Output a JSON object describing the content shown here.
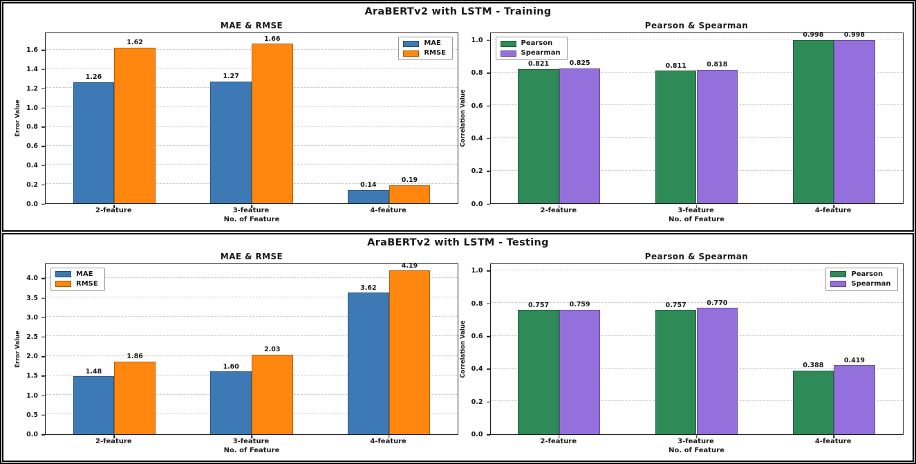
{
  "sections": [
    {
      "title": "AraBERTv2 with LSTM - Training"
    },
    {
      "title": "AraBERTv2 with LSTM - Testing"
    }
  ],
  "colors": {
    "mae": "#3d7ab5",
    "rmse": "#ff870f",
    "pearson": "#2e8b57",
    "spearman": "#9370db",
    "grid": "#c9c9c9",
    "axis": "#1a1a1a"
  },
  "chart_data": [
    {
      "type": "bar",
      "section": "Training",
      "title": "MAE & RMSE",
      "categories": [
        "2-feature",
        "3-feature",
        "4-feature"
      ],
      "series": [
        {
          "name": "MAE",
          "color": "mae",
          "values": [
            1.26,
            1.27,
            0.14
          ],
          "labels": [
            "1.26",
            "1.27",
            "0.14"
          ]
        },
        {
          "name": "RMSE",
          "color": "rmse",
          "values": [
            1.62,
            1.66,
            0.19
          ],
          "labels": [
            "1.62",
            "1.66",
            "0.19"
          ]
        }
      ],
      "xlabel": "No. of Feature",
      "ylabel": "Error Value",
      "ylim": [
        0,
        1.77
      ],
      "yticks": [
        0.0,
        0.2,
        0.4,
        0.6,
        0.8,
        1.0,
        1.2,
        1.4,
        1.6
      ],
      "ytick_labels": [
        "0.0",
        "0.2",
        "0.4",
        "0.6",
        "0.8",
        "1.0",
        "1.2",
        "1.4",
        "1.6"
      ],
      "legend_position": "top-right",
      "grid": "dashed-horizontal"
    },
    {
      "type": "bar",
      "section": "Training",
      "title": "Pearson & Spearman",
      "categories": [
        "2-feature",
        "3-feature",
        "4-feature"
      ],
      "series": [
        {
          "name": "Pearson",
          "color": "pearson",
          "values": [
            0.821,
            0.811,
            0.998
          ],
          "labels": [
            "0.821",
            "0.811",
            "0.998"
          ]
        },
        {
          "name": "Spearman",
          "color": "spearman",
          "values": [
            0.825,
            0.818,
            0.998
          ],
          "labels": [
            "0.825",
            "0.818",
            "0.998"
          ]
        }
      ],
      "xlabel": "No. of Feature",
      "ylabel": "Correlation Value",
      "ylim": [
        0,
        1.04
      ],
      "yticks": [
        0.0,
        0.2,
        0.4,
        0.6,
        0.8,
        1.0
      ],
      "ytick_labels": [
        "0.0",
        "0.2",
        "0.4",
        "0.6",
        "0.8",
        "1.0"
      ],
      "legend_position": "top-left",
      "grid": "dashed-horizontal"
    },
    {
      "type": "bar",
      "section": "Testing",
      "title": "MAE & RMSE",
      "categories": [
        "2-feature",
        "3-feature",
        "4-feature"
      ],
      "series": [
        {
          "name": "MAE",
          "color": "mae",
          "values": [
            1.48,
            1.6,
            3.62
          ],
          "labels": [
            "1.48",
            "1.60",
            "3.62"
          ]
        },
        {
          "name": "RMSE",
          "color": "rmse",
          "values": [
            1.86,
            2.03,
            4.19
          ],
          "labels": [
            "1.86",
            "2.03",
            "4.19"
          ]
        }
      ],
      "xlabel": "No. of Feature",
      "ylabel": "Error Value",
      "ylim": [
        0,
        4.36
      ],
      "yticks": [
        0.0,
        0.5,
        1.0,
        1.5,
        2.0,
        2.5,
        3.0,
        3.5,
        4.0
      ],
      "ytick_labels": [
        "0.0",
        "0.5",
        "1.0",
        "1.5",
        "2.0",
        "2.5",
        "3.0",
        "3.5",
        "4.0"
      ],
      "legend_position": "top-left",
      "grid": "dashed-horizontal"
    },
    {
      "type": "bar",
      "section": "Testing",
      "title": "Pearson & Spearman",
      "categories": [
        "2-feature",
        "3-feature",
        "4-feature"
      ],
      "series": [
        {
          "name": "Pearson",
          "color": "pearson",
          "values": [
            0.757,
            0.757,
            0.388
          ],
          "labels": [
            "0.757",
            "0.757",
            "0.388"
          ]
        },
        {
          "name": "Spearman",
          "color": "spearman",
          "values": [
            0.759,
            0.77,
            0.419
          ],
          "labels": [
            "0.759",
            "0.770",
            "0.419"
          ]
        }
      ],
      "xlabel": "No. of Feature",
      "ylabel": "Correlation Value",
      "ylim": [
        0,
        1.04
      ],
      "yticks": [
        0.0,
        0.2,
        0.4,
        0.6,
        0.8,
        1.0
      ],
      "ytick_labels": [
        "0.0",
        "0.2",
        "0.4",
        "0.6",
        "0.8",
        "1.0"
      ],
      "legend_position": "top-right",
      "grid": "dashed-horizontal"
    }
  ]
}
